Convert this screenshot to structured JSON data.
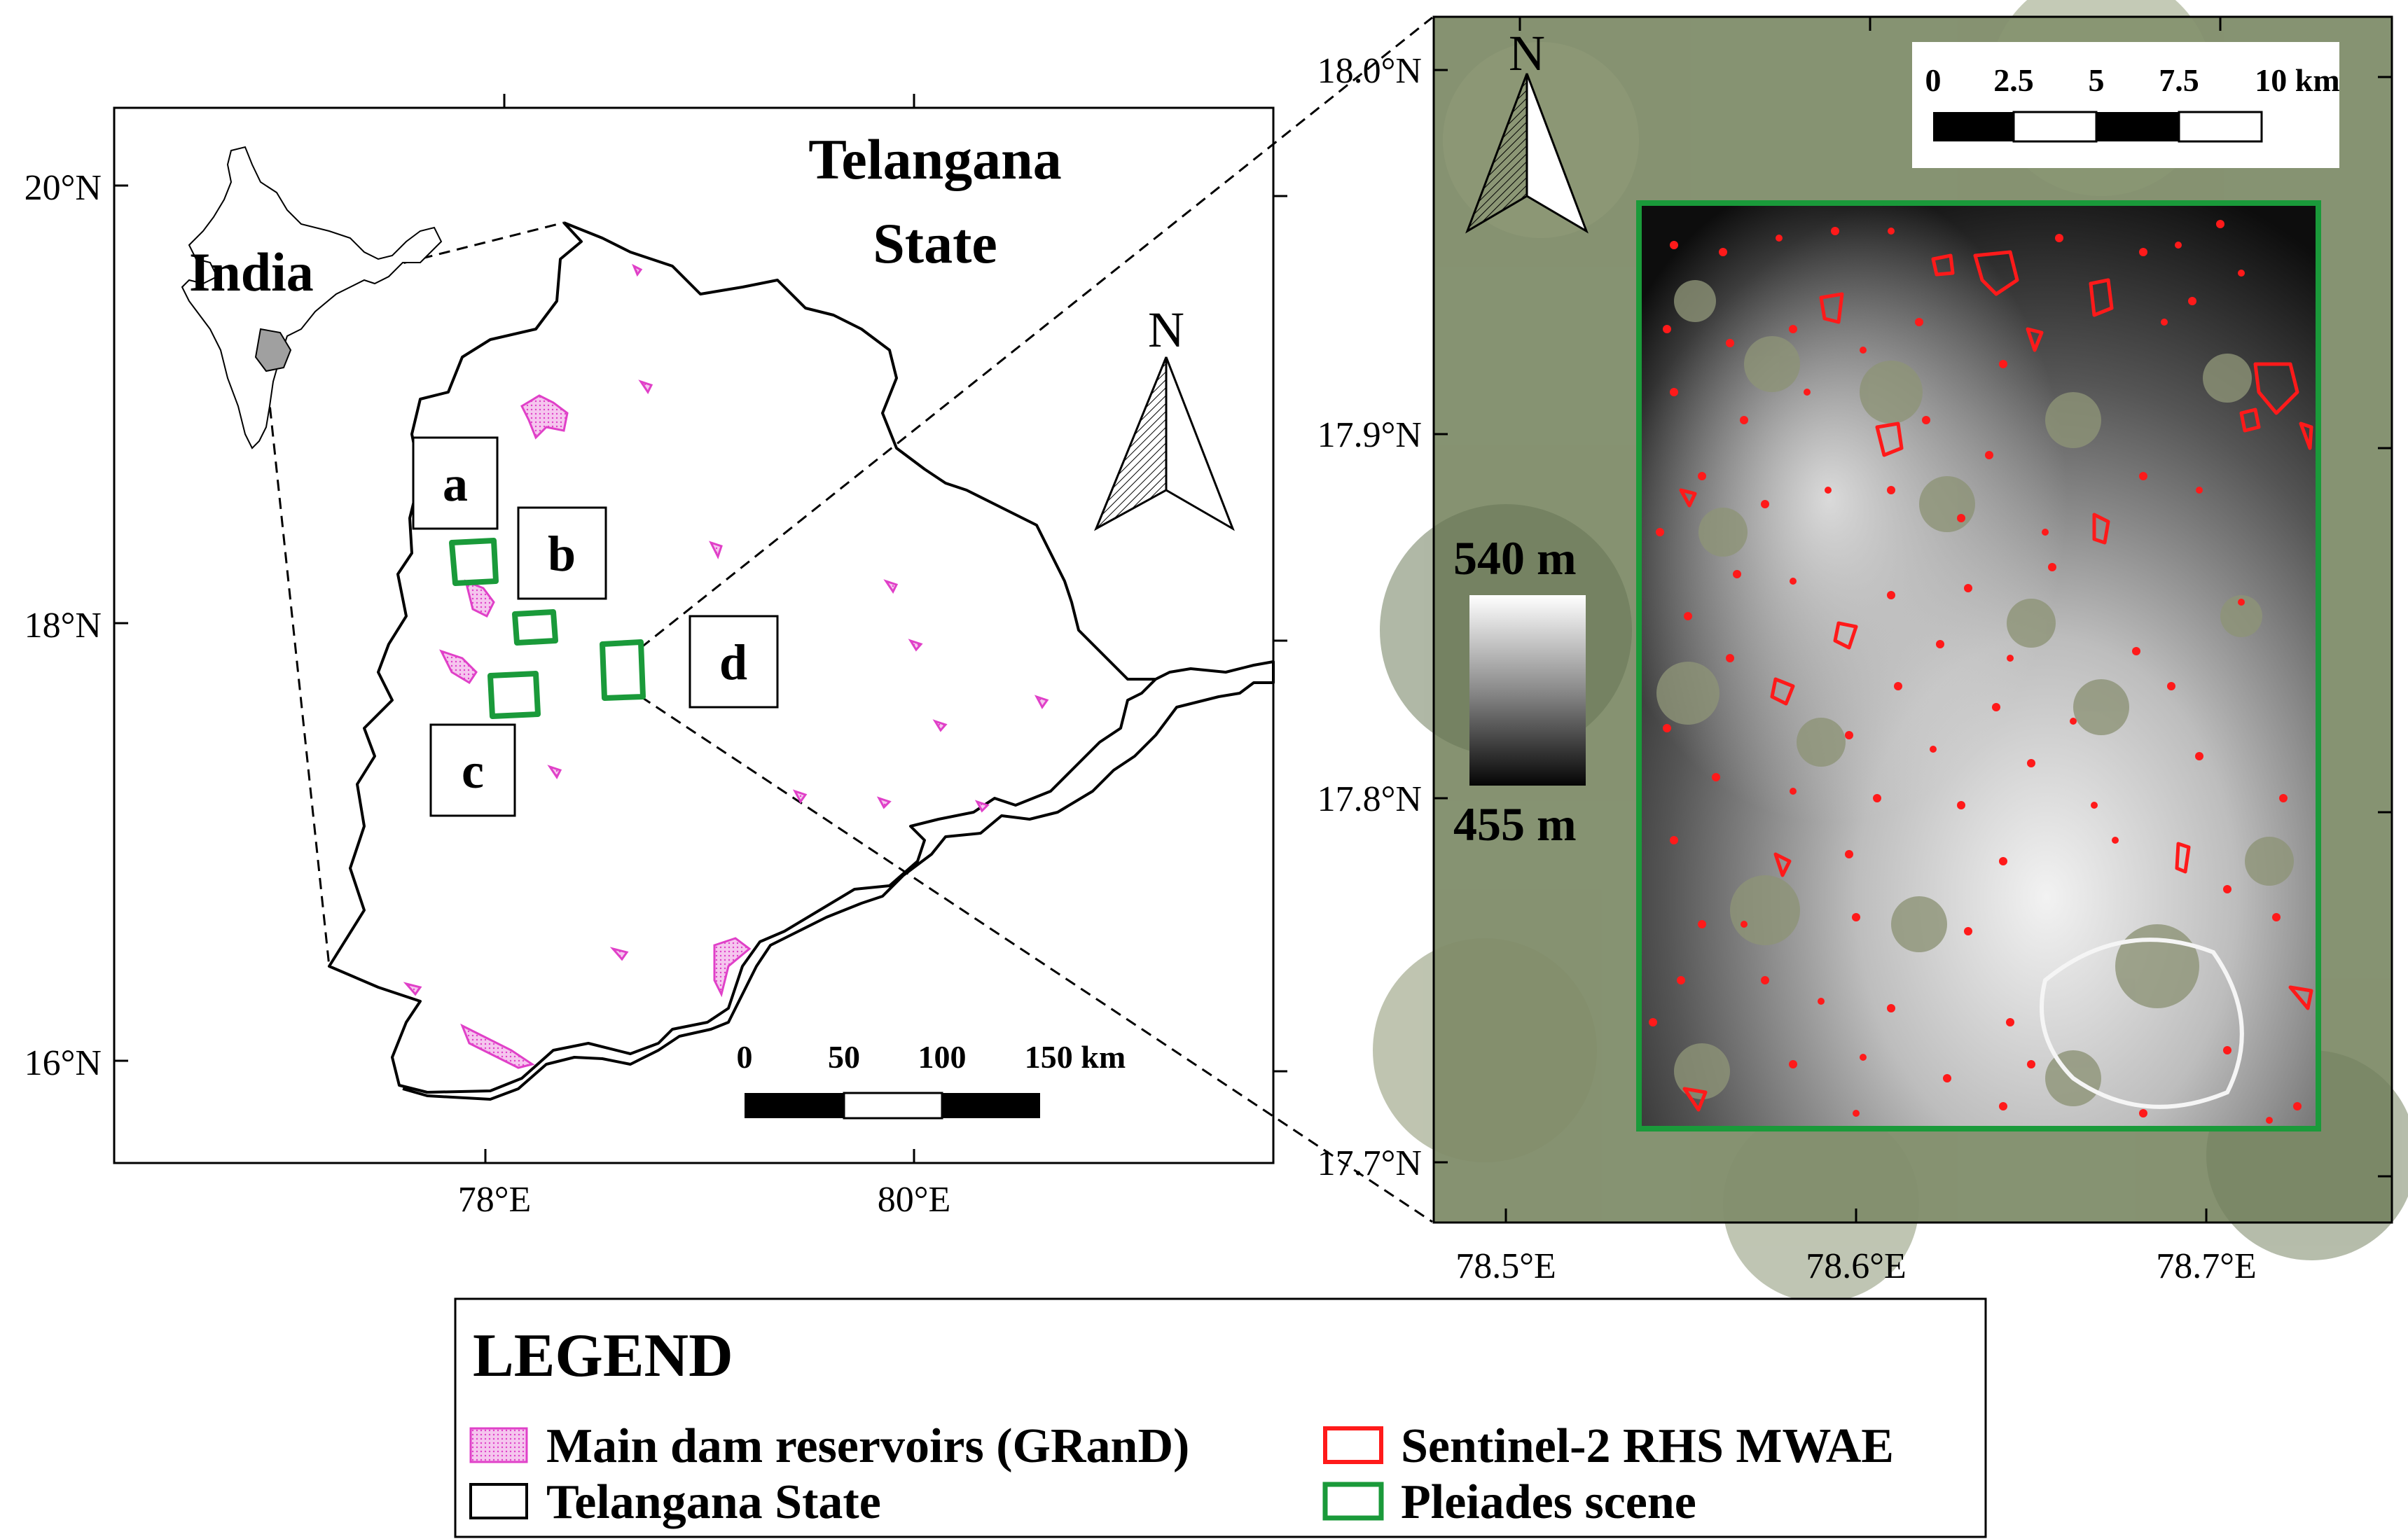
{
  "left_map": {
    "title_line1": "Telangana",
    "title_line2": "State",
    "inset_label": "India",
    "north_label": "N",
    "lat_labels": [
      "20°N",
      "18°N",
      "16°N"
    ],
    "lon_labels": [
      "78°E",
      "80°E"
    ],
    "scale_ticks": [
      "0",
      "50",
      "100",
      "150 km"
    ],
    "site_labels": [
      "a",
      "b",
      "c",
      "d"
    ]
  },
  "right_map": {
    "north_label": "N",
    "lat_labels": [
      "18.0°N",
      "17.9°N",
      "17.8°N",
      "17.7°N"
    ],
    "lon_labels": [
      "78.5°E",
      "78.6°E",
      "78.7°E"
    ],
    "scale_ticks": [
      "0",
      "2.5",
      "5",
      "7.5",
      "10 km"
    ],
    "elevation_max": "540 m",
    "elevation_min": "455 m"
  },
  "legend": {
    "title": "LEGEND",
    "items": [
      {
        "label": "Main dam reservoirs (GRanD)",
        "color": "#e040c8"
      },
      {
        "label": "Sentinel-2 RHS MWAE",
        "color": "#ff1a1a"
      },
      {
        "label": "Telangana State",
        "color": "#000000"
      },
      {
        "label": "Pleiades scene",
        "color": "#1a9a3a"
      }
    ]
  }
}
